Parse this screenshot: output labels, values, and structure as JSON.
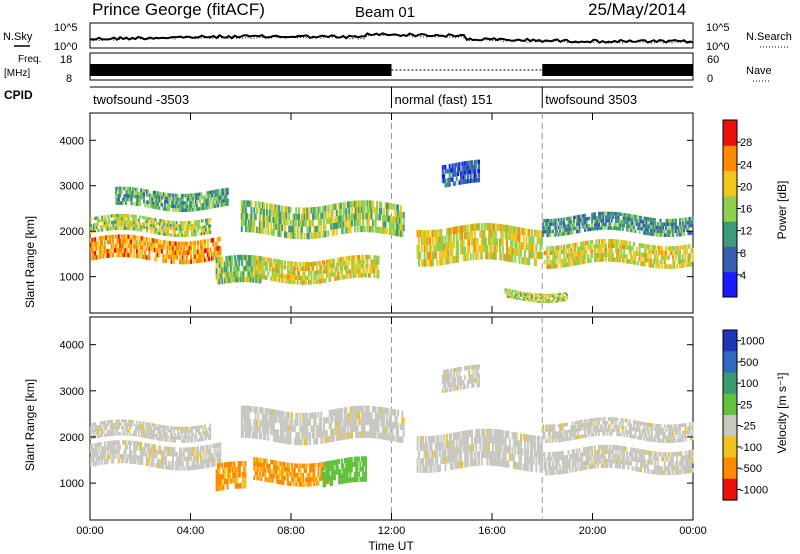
{
  "header": {
    "station": "Prince George (fitACF)",
    "beam": "Beam 01",
    "date": "25/May/2014"
  },
  "noise_panel": {
    "left_label": "N.Sky",
    "right_label": "N.Search",
    "tick_top": "10^5",
    "tick_bottom": "10^0",
    "right_tick_top": "10^5",
    "right_tick_bottom": "10^0"
  },
  "freq_panel": {
    "left_label": "Freq.",
    "left_unit": "[MHz]",
    "right_label": "Nave",
    "left_ticks": [
      "18",
      "8"
    ],
    "right_ticks": [
      "60",
      "0"
    ]
  },
  "cpid_panel": {
    "label": "CPID",
    "segments": [
      {
        "label": "twofsound -3503",
        "start_hour": 0
      },
      {
        "label": "normal (fast) 151",
        "start_hour": 12
      },
      {
        "label": "twofsound 3503",
        "start_hour": 18
      }
    ]
  },
  "chart_data": [
    {
      "type": "heatmap",
      "name": "power",
      "ylabel": "Slant Range [km]",
      "xlim": [
        0,
        24
      ],
      "ylim": [
        200,
        4600
      ],
      "yticks": [
        1000,
        2000,
        3000,
        4000
      ],
      "colorbar": {
        "label": "Power [dB]",
        "ticks": [
          "4",
          "8",
          "12",
          "16",
          "20",
          "24",
          "28"
        ],
        "range": [
          0,
          30
        ],
        "colors": [
          "#1a1aff",
          "#3a5fb0",
          "#3d9a7a",
          "#8fd14f",
          "#f2c81e",
          "#ff8a00",
          "#e8120a"
        ]
      },
      "bands": [
        {
          "t0": 0.0,
          "t1": 5.2,
          "r0": 1350,
          "r1": 1850,
          "level": 22
        },
        {
          "t0": 0.0,
          "t1": 4.8,
          "r0": 1950,
          "r1": 2300,
          "level": 16
        },
        {
          "t0": 1.0,
          "t1": 5.5,
          "r0": 2500,
          "r1": 2900,
          "level": 12
        },
        {
          "t0": 5.0,
          "t1": 6.8,
          "r0": 800,
          "r1": 1400,
          "level": 14
        },
        {
          "t0": 6.5,
          "t1": 11.5,
          "r0": 900,
          "r1": 1400,
          "level": 18
        },
        {
          "t0": 6.0,
          "t1": 12.5,
          "r0": 1900,
          "r1": 2600,
          "level": 15
        },
        {
          "t0": 13.0,
          "t1": 18.0,
          "r0": 1300,
          "r1": 2100,
          "level": 18
        },
        {
          "t0": 16.5,
          "t1": 19.0,
          "r0": 500,
          "r1": 700,
          "level": 16
        },
        {
          "t0": 18.0,
          "t1": 24.0,
          "r0": 1250,
          "r1": 1750,
          "level": 18
        },
        {
          "t0": 18.0,
          "t1": 24.0,
          "r0": 1950,
          "r1": 2350,
          "level": 10
        },
        {
          "t0": 14.0,
          "t1": 15.5,
          "r0": 3000,
          "r1": 3500,
          "level": 6
        }
      ]
    },
    {
      "type": "heatmap",
      "name": "velocity",
      "ylabel": "Slant Range [km]",
      "xlabel": "Time UT",
      "xlim": [
        0,
        24
      ],
      "ylim": [
        200,
        4600
      ],
      "yticks": [
        1000,
        2000,
        3000,
        4000
      ],
      "xticks": [
        "00:00",
        "04:00",
        "08:00",
        "12:00",
        "16:00",
        "20:00",
        "00:00"
      ],
      "colorbar": {
        "label": "Velocity [m s⁻¹]",
        "ticks": [
          "1000",
          "500",
          "100",
          "25",
          "-25",
          "-100",
          "-500",
          "-1000"
        ],
        "colors": [
          "#2233bb",
          "#2f6ac0",
          "#3c9a70",
          "#62c23e",
          "#c8c8c0",
          "#f1c21c",
          "#ff8a00",
          "#e8120a"
        ]
      },
      "bands": [
        {
          "t0": 0.0,
          "t1": 5.2,
          "r0": 1350,
          "r1": 1850,
          "level": "gray"
        },
        {
          "t0": 0.0,
          "t1": 4.8,
          "r0": 1950,
          "r1": 2300,
          "level": "gray"
        },
        {
          "t0": 6.0,
          "t1": 12.5,
          "r0": 1900,
          "r1": 2600,
          "level": "gray"
        },
        {
          "t0": 5.0,
          "t1": 6.2,
          "r0": 800,
          "r1": 1400,
          "level": "orange"
        },
        {
          "t0": 6.5,
          "t1": 9.5,
          "r0": 1000,
          "r1": 1500,
          "level": "orange"
        },
        {
          "t0": 9.2,
          "t1": 11.0,
          "r0": 950,
          "r1": 1500,
          "level": "green"
        },
        {
          "t0": 13.0,
          "t1": 18.0,
          "r0": 1300,
          "r1": 2100,
          "level": "gray"
        },
        {
          "t0": 18.0,
          "t1": 24.0,
          "r0": 1250,
          "r1": 1750,
          "level": "gray"
        },
        {
          "t0": 18.0,
          "t1": 24.0,
          "r0": 1950,
          "r1": 2350,
          "level": "gray"
        },
        {
          "t0": 14.0,
          "t1": 15.5,
          "r0": 3000,
          "r1": 3500,
          "level": "gray"
        }
      ]
    }
  ]
}
